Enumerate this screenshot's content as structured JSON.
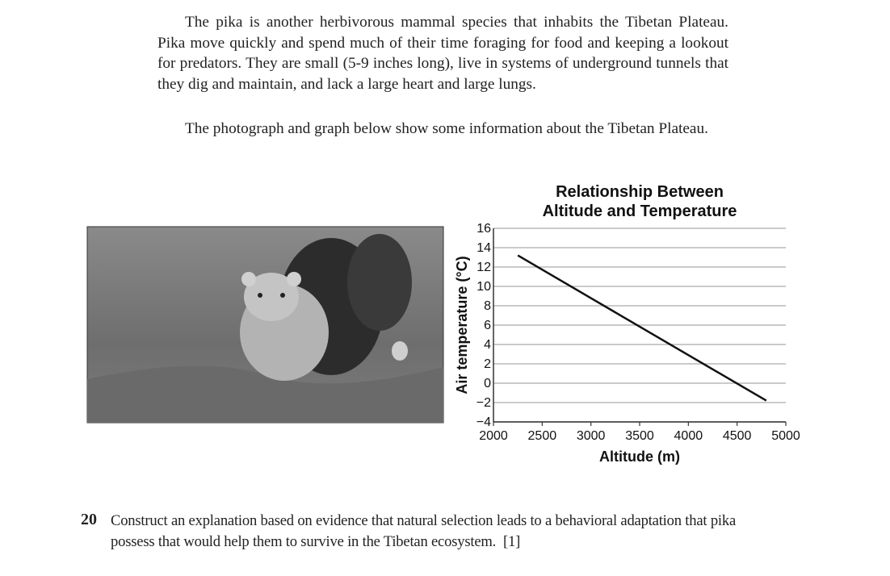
{
  "paragraphs": [
    "The pika is another herbivorous mammal species that inhabits the Tibetan Plateau. Pika move quickly and spend much of their time foraging for food and keeping a lookout for predators. They are small (5-9 inches long), live in systems of underground tunnels that they dig and maintain, and lack a large heart and large lungs.",
    "The photograph and graph below show some information about the Tibetan Plateau."
  ],
  "chart_data": {
    "type": "line",
    "title": "Relationship Between Altitude and Temperature",
    "xlabel": "Altitude (m)",
    "ylabel": "Air temperature (°C)",
    "x": [
      2250,
      4800
    ],
    "values": [
      13.2,
      -1.8
    ],
    "color": "#111111",
    "xlim": [
      2000,
      5000
    ],
    "xticks": [
      2000,
      2500,
      3000,
      3500,
      4000,
      4500,
      5000
    ],
    "ylim": [
      -4,
      16
    ],
    "yticks": [
      {
        "value": -4,
        "label": "−4"
      },
      {
        "value": -2,
        "label": "−2"
      },
      0,
      2,
      4,
      6,
      8,
      10,
      12,
      14,
      16
    ],
    "grid": true
  },
  "question": {
    "number": "20",
    "text": "Construct an explanation based on evidence that natural selection leads to a behavioral adaptation that pika possess that would help them to survive in the Tibetan ecosystem.",
    "points": "[1]"
  }
}
